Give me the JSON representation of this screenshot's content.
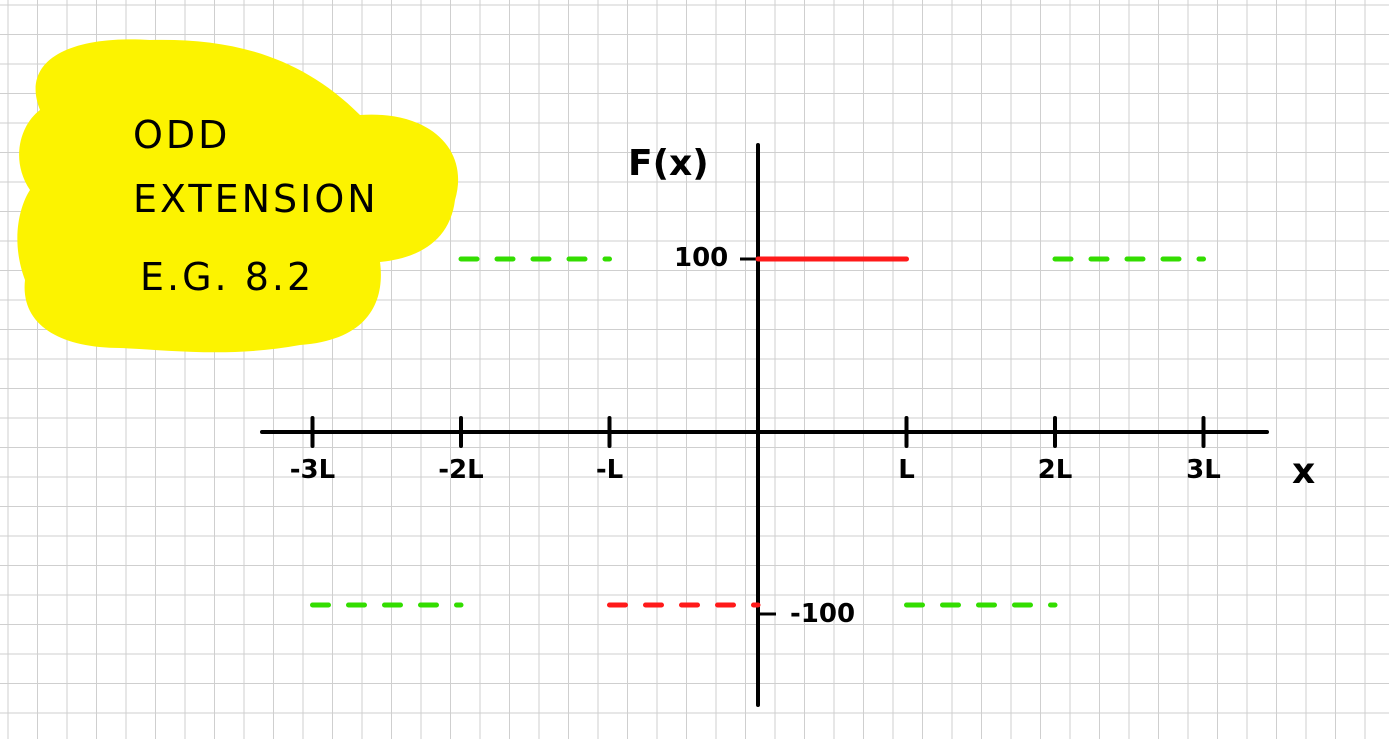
{
  "note": {
    "lines": [
      "ODD",
      "EXTENSION",
      "E.G. 8.2"
    ],
    "highlight_color": "#fcf300"
  },
  "axes": {
    "y_label": "F(x)",
    "x_label": "x",
    "ticks": [
      "-3L",
      "-2L",
      "-L",
      "L",
      "2L",
      "3L"
    ],
    "value_high": "100",
    "value_low": "-100"
  },
  "colors": {
    "grid": "#cfcfcf",
    "axis": "#000000",
    "original": "#ff1a1a",
    "extension": "#33dd00"
  },
  "chart_data": {
    "type": "line",
    "x_ticks": [
      "-3L",
      "-2L",
      "-L",
      "L",
      "2L",
      "3L"
    ],
    "x_tick_values": [
      -3,
      -2,
      -1,
      1,
      2,
      3
    ],
    "y_ticks": [
      100,
      -100
    ],
    "series": [
      {
        "style": "solid",
        "color": "#ff1a1a",
        "segments": [
          {
            "x": [
              0,
              1
            ],
            "y": 100
          }
        ]
      },
      {
        "style": "dashed",
        "color": "#ff1a1a",
        "segments": [
          {
            "x": [
              -1,
              0
            ],
            "y": -100
          }
        ]
      },
      {
        "style": "dashed",
        "color": "#33dd00",
        "segments": [
          {
            "x": [
              -2,
              -1
            ],
            "y": 100
          },
          {
            "x": [
              2,
              3
            ],
            "y": 100
          },
          {
            "x": [
              -3,
              -2
            ],
            "y": -100
          },
          {
            "x": [
              1,
              2
            ],
            "y": -100
          }
        ]
      }
    ],
    "xlabel": "x",
    "ylabel": "F(x)"
  }
}
